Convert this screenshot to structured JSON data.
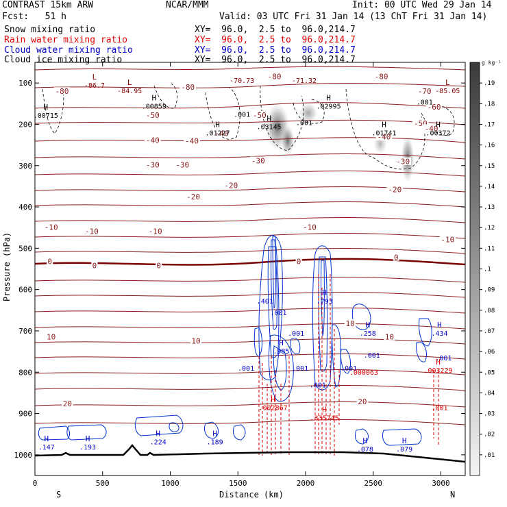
{
  "header": {
    "model": "CONTRAST 15km ARW",
    "forecast": "Fcst:   51 h",
    "center": "NCAR/MMM",
    "init": "Init: 00 UTC Wed 29 Jan 14",
    "valid": "Valid: 03 UTC Fri 31 Jan 14 (13 ChT Fri 31 Jan 14)",
    "fields": [
      {
        "name": "Snow mixing ratio",
        "xy": "XY=  96.0,  2.5 to  96.0,214.7",
        "color": "#000000"
      },
      {
        "name": "Rain water mixing ratio",
        "xy": "XY=  96.0,  2.5 to  96.0,214.7",
        "color": "#dd0000"
      },
      {
        "name": "Cloud water mixing ratio",
        "xy": "XY=  96.0,  2.5 to  96.0,214.7",
        "color": "#0000cc"
      },
      {
        "name": "Cloud ice mixing ratio",
        "xy": "XY=  96.0,  2.5 to  96.0,214.7",
        "color": "#000000"
      }
    ]
  },
  "chart_data": {
    "type": "heatmap",
    "ylabel": "Pressure (hPa)",
    "xlabel": "Distance (km)",
    "x_ticks": [
      0,
      500,
      1000,
      1500,
      2000,
      2500,
      3000
    ],
    "y_ticks": [
      100,
      200,
      300,
      400,
      500,
      600,
      700,
      800,
      900,
      1000
    ],
    "xlim": [
      0,
      3180
    ],
    "ylim": [
      1050,
      50
    ],
    "x_end_labels": [
      "S",
      "N"
    ],
    "colorbar": {
      "unit": "g kg⁻¹",
      "ticks": [
        ".19",
        ".18",
        ".17",
        ".16",
        ".15",
        ".14",
        ".13",
        ".12",
        ".11",
        ".1",
        ".09",
        ".08",
        ".07",
        ".06",
        ".05",
        ".04",
        ".03",
        ".02",
        ".01"
      ]
    },
    "isotherm_labels": [
      {
        "text": "-80",
        "x": 200,
        "p": 120
      },
      {
        "text": "-80",
        "x": 1130,
        "p": 110
      },
      {
        "text": "-80",
        "x": 1770,
        "p": 84
      },
      {
        "text": "-80",
        "x": 2560,
        "p": 84
      },
      {
        "text": "-70",
        "x": 2880,
        "p": 120
      },
      {
        "text": "-60",
        "x": 2950,
        "p": 158
      },
      {
        "text": "-50",
        "x": 870,
        "p": 178
      },
      {
        "text": "-50",
        "x": 1660,
        "p": 178
      },
      {
        "text": "-50",
        "x": 2850,
        "p": 198
      },
      {
        "text": "-40",
        "x": 870,
        "p": 238
      },
      {
        "text": "-40",
        "x": 1380,
        "p": 222
      },
      {
        "text": "-40",
        "x": 1160,
        "p": 240
      },
      {
        "text": "-40",
        "x": 2580,
        "p": 230
      },
      {
        "text": "-40",
        "x": 2930,
        "p": 210
      },
      {
        "text": "-30",
        "x": 870,
        "p": 298
      },
      {
        "text": "-30",
        "x": 1090,
        "p": 298
      },
      {
        "text": "-30",
        "x": 1650,
        "p": 288
      },
      {
        "text": "-30",
        "x": 2720,
        "p": 290
      },
      {
        "text": "-20",
        "x": 1170,
        "p": 375
      },
      {
        "text": "-20",
        "x": 1450,
        "p": 348
      },
      {
        "text": "-20",
        "x": 2660,
        "p": 358
      },
      {
        "text": "-10",
        "x": 120,
        "p": 449
      },
      {
        "text": "-10",
        "x": 420,
        "p": 459
      },
      {
        "text": "-10",
        "x": 890,
        "p": 459
      },
      {
        "text": "-10",
        "x": 2030,
        "p": 449
      },
      {
        "text": "-10",
        "x": 3050,
        "p": 479
      },
      {
        "text": "0",
        "x": 110,
        "p": 532
      },
      {
        "text": "0",
        "x": 440,
        "p": 542
      },
      {
        "text": "0",
        "x": 915,
        "p": 542
      },
      {
        "text": "0",
        "x": 1950,
        "p": 532
      },
      {
        "text": "0",
        "x": 2670,
        "p": 522
      },
      {
        "text": "10",
        "x": 120,
        "p": 714
      },
      {
        "text": "10",
        "x": 1190,
        "p": 724
      },
      {
        "text": "10",
        "x": 2330,
        "p": 682
      },
      {
        "text": "10",
        "x": 2620,
        "p": 714
      },
      {
        "text": "20",
        "x": 240,
        "p": 876
      },
      {
        "text": "20",
        "x": 2420,
        "p": 871
      }
    ],
    "extrema": [
      {
        "type": "L",
        "value": "-86.7",
        "x": 440,
        "p": 95,
        "color": "#8b0000"
      },
      {
        "type": "L",
        "value": "-84.95",
        "x": 700,
        "p": 108,
        "color": "#8b0000"
      },
      {
        "type": "",
        "value": "-70.73",
        "x": 1530,
        "p": 83,
        "color": "#8b0000"
      },
      {
        "type": "",
        "value": "-71.32",
        "x": 1990,
        "p": 83,
        "color": "#8b0000"
      },
      {
        "type": "L",
        "value": "-85.05",
        "x": 3050,
        "p": 108,
        "color": "#8b0000"
      },
      {
        "type": "H",
        "value": ".00715",
        "x": 80,
        "p": 168,
        "color": "#000000"
      },
      {
        "type": "H",
        "value": ".00859",
        "x": 880,
        "p": 145,
        "color": "#000000"
      },
      {
        "type": "",
        "value": ".001",
        "x": 1530,
        "p": 165,
        "color": "#000000"
      },
      {
        "type": "H",
        "value": ".01227",
        "x": 1350,
        "p": 210,
        "color": "#000000"
      },
      {
        "type": "H",
        "value": ".03145",
        "x": 1730,
        "p": 195,
        "color": "#000000"
      },
      {
        "type": "",
        "value": ".001",
        "x": 1990,
        "p": 185,
        "color": "#000000"
      },
      {
        "type": "H",
        "value": ".02995",
        "x": 2170,
        "p": 145,
        "color": "#000000"
      },
      {
        "type": "",
        "value": ".001",
        "x": 2880,
        "p": 135,
        "color": "#000000"
      },
      {
        "type": "H",
        "value": ".01741",
        "x": 2580,
        "p": 210,
        "color": "#000000"
      },
      {
        "type": "H",
        "value": ".00372",
        "x": 2980,
        "p": 210,
        "color": "#000000"
      },
      {
        "type": "",
        "value": ".401",
        "x": 1700,
        "p": 617,
        "color": "#0000cc"
      },
      {
        "type": "",
        "value": ".001",
        "x": 1800,
        "p": 645,
        "color": "#0000cc"
      },
      {
        "type": "H",
        "value": ".793",
        "x": 2140,
        "p": 617,
        "color": "#0000cc"
      },
      {
        "type": "",
        "value": ".001",
        "x": 1930,
        "p": 695,
        "color": "#0000cc"
      },
      {
        "type": "H",
        "value": ".985",
        "x": 1820,
        "p": 738,
        "color": "#0000cc"
      },
      {
        "type": "",
        "value": ".001",
        "x": 1560,
        "p": 780,
        "color": "#0000cc"
      },
      {
        "type": "",
        "value": ".001",
        "x": 1960,
        "p": 780,
        "color": "#0000cc"
      },
      {
        "type": "H",
        "value": ".258",
        "x": 2460,
        "p": 695,
        "color": "#0000cc"
      },
      {
        "type": "",
        "value": ".001",
        "x": 2490,
        "p": 748,
        "color": "#0000cc"
      },
      {
        "type": "",
        "value": ".001",
        "x": 2320,
        "p": 780,
        "color": "#0000cc"
      },
      {
        "type": "",
        "value": ".001",
        "x": 2090,
        "p": 820,
        "color": "#0000cc"
      },
      {
        "type": "H",
        "value": ".434",
        "x": 2990,
        "p": 695,
        "color": "#0000cc"
      },
      {
        "type": "",
        "value": ".001",
        "x": 3020,
        "p": 755,
        "color": "#0000cc"
      },
      {
        "type": "H",
        "value": ".147",
        "x": 85,
        "p": 970,
        "color": "#0000cc"
      },
      {
        "type": "H",
        "value": ".193",
        "x": 390,
        "p": 970,
        "color": "#0000cc"
      },
      {
        "type": "H",
        "value": ".224",
        "x": 910,
        "p": 958,
        "color": "#0000cc"
      },
      {
        "type": "H",
        "value": ".189",
        "x": 1330,
        "p": 958,
        "color": "#0000cc"
      },
      {
        "type": "H",
        "value": ".078",
        "x": 2440,
        "p": 975,
        "color": "#0000cc"
      },
      {
        "type": "H",
        "value": ".079",
        "x": 2730,
        "p": 975,
        "color": "#0000cc"
      },
      {
        "type": "",
        "value": ".000063",
        "x": 2430,
        "p": 790,
        "color": "#dd0000"
      },
      {
        "type": "H",
        "value": ".003229",
        "x": 2980,
        "p": 785,
        "color": "#dd0000"
      },
      {
        "type": "H",
        "value": ".002867",
        "x": 1760,
        "p": 875,
        "color": "#dd0000"
      },
      {
        "type": "H",
        "value": ".335745",
        "x": 2140,
        "p": 900,
        "color": "#dd0000"
      },
      {
        "type": "",
        "value": ".001",
        "x": 2990,
        "p": 875,
        "color": "#dd0000"
      }
    ]
  }
}
